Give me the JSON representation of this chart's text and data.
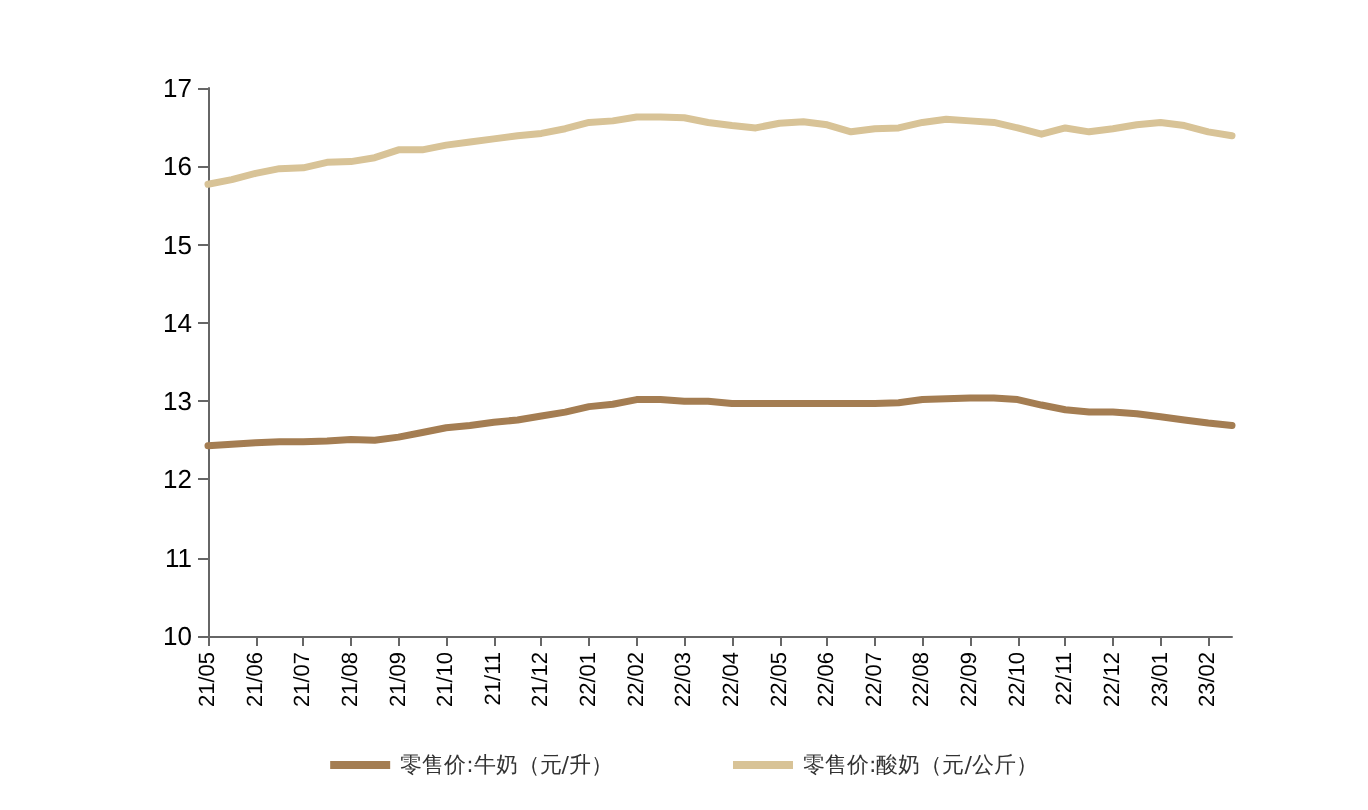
{
  "chart_data": {
    "type": "line",
    "categories": [
      "21/05",
      null,
      "21/06",
      null,
      "21/07",
      null,
      "21/08",
      null,
      "21/09",
      null,
      "21/10",
      null,
      "21/11",
      null,
      "21/12",
      null,
      "22/01",
      null,
      "22/02",
      null,
      "22/03",
      null,
      "22/04",
      null,
      "22/05",
      null,
      "22/06",
      null,
      "22/07",
      null,
      "22/08",
      null,
      "22/09",
      null,
      "22/10",
      null,
      "22/11",
      null,
      "22/12",
      null,
      "23/01",
      null,
      "23/02",
      null
    ],
    "series": [
      {
        "name": "零售价:牛奶（元/升）",
        "color": "#a47d52",
        "values": [
          12.43,
          12.45,
          12.47,
          12.48,
          12.48,
          12.49,
          12.51,
          12.5,
          12.54,
          12.6,
          12.66,
          12.69,
          12.73,
          12.76,
          12.81,
          12.86,
          12.93,
          12.96,
          13.02,
          13.02,
          13.0,
          13.0,
          12.97,
          12.97,
          12.97,
          12.97,
          12.97,
          12.97,
          12.97,
          12.98,
          13.02,
          13.03,
          13.04,
          13.04,
          13.02,
          12.95,
          12.89,
          12.86,
          12.86,
          12.84,
          12.8,
          12.76,
          12.72,
          12.69
        ]
      },
      {
        "name": "零售价:酸奶（元/公斤）",
        "color": "#d8c397",
        "values": [
          15.77,
          15.83,
          15.91,
          15.97,
          15.98,
          16.05,
          16.06,
          16.11,
          16.21,
          16.21,
          16.27,
          16.31,
          16.35,
          16.39,
          16.42,
          16.48,
          16.56,
          16.58,
          16.63,
          16.63,
          16.62,
          16.56,
          16.52,
          16.49,
          16.55,
          16.57,
          16.53,
          16.44,
          16.48,
          16.49,
          16.56,
          16.6,
          16.58,
          16.56,
          16.49,
          16.41,
          16.49,
          16.44,
          16.48,
          16.53,
          16.56,
          16.52,
          16.44,
          16.39
        ]
      }
    ],
    "ylim": [
      10,
      17
    ],
    "yticks": [
      10,
      11,
      12,
      13,
      14,
      15,
      16,
      17
    ],
    "grid": false,
    "legend": "bottom",
    "marker": "none",
    "line_style": "solid"
  }
}
